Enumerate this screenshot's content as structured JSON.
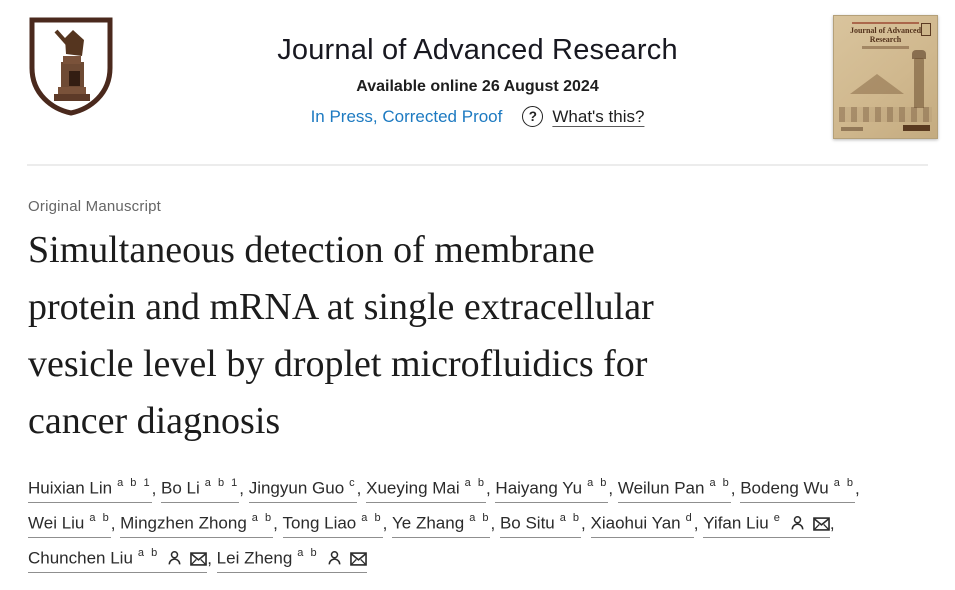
{
  "header": {
    "journal_title": "Journal of Advanced Research",
    "available_online": "Available online 26 August 2024",
    "in_press_label": "In Press, Corrected Proof",
    "question_mark": "?",
    "whats_this_label": "What's this?"
  },
  "cover": {
    "title": "Journal of Advanced Research"
  },
  "article": {
    "category": "Original Manuscript",
    "title": "Simultaneous detection of membrane protein and mRNA at single extracellular vesicle level by droplet microfluidics for cancer diagnosis",
    "title_lines": [
      "Simultaneous detection of membrane",
      "protein and mRNA at single extracellular",
      "vesicle level by droplet microfluidics for",
      "cancer diagnosis"
    ]
  },
  "authors": [
    {
      "name": "Huixian Lin",
      "sup": "a b 1",
      "person": false,
      "mail": false
    },
    {
      "name": "Bo Li",
      "sup": "a b 1",
      "person": false,
      "mail": false
    },
    {
      "name": "Jingyun Guo",
      "sup": "c",
      "person": false,
      "mail": false
    },
    {
      "name": "Xueying Mai",
      "sup": "a b",
      "person": false,
      "mail": false
    },
    {
      "name": "Haiyang Yu",
      "sup": "a b",
      "person": false,
      "mail": false
    },
    {
      "name": "Weilun Pan",
      "sup": "a b",
      "person": false,
      "mail": false
    },
    {
      "name": "Bodeng Wu",
      "sup": "a b",
      "person": false,
      "mail": false
    },
    {
      "name": "Wei Liu",
      "sup": "a b",
      "person": false,
      "mail": false
    },
    {
      "name": "Mingzhen Zhong",
      "sup": "a b",
      "person": false,
      "mail": false
    },
    {
      "name": "Tong Liao",
      "sup": "a b",
      "person": false,
      "mail": false
    },
    {
      "name": "Ye Zhang",
      "sup": "a b",
      "person": false,
      "mail": false
    },
    {
      "name": "Bo Situ",
      "sup": "a b",
      "person": false,
      "mail": false
    },
    {
      "name": "Xiaohui Yan",
      "sup": "d",
      "person": false,
      "mail": false
    },
    {
      "name": "Yifan Liu",
      "sup": "e",
      "person": true,
      "mail": true
    },
    {
      "name": "Chunchen Liu",
      "sup": "a b",
      "person": true,
      "mail": true
    },
    {
      "name": "Lei Zheng",
      "sup": "a b",
      "person": true,
      "mail": true
    }
  ],
  "icons": {
    "question-circle-icon": "? in circle",
    "person-icon": "person outline",
    "envelope-icon": "envelope outline",
    "university-crest-logo": "brown shield with seated pharaoh"
  },
  "colors": {
    "link_blue": "#1d7ac1",
    "logo_brown": "#4a291d",
    "cover_tan": "#d3bd93",
    "underline_gray": "#8f8f8f"
  }
}
